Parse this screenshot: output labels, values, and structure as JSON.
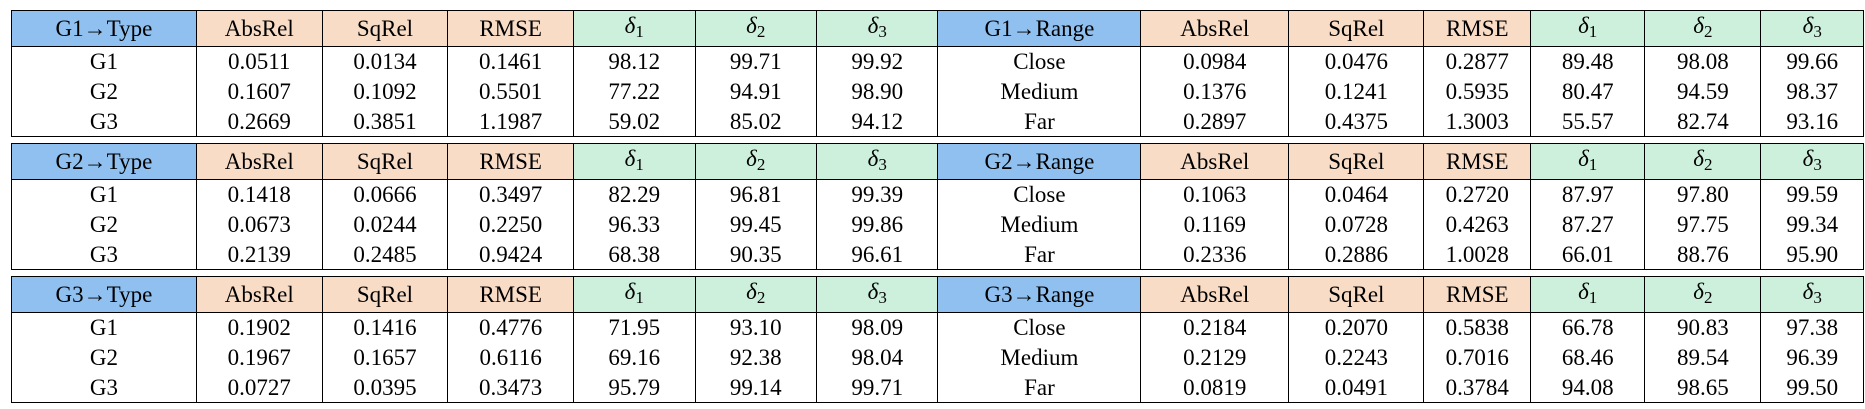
{
  "headers": {
    "abs_rel": "AbsRel",
    "sq_rel": "SqRel",
    "rmse": "RMSE",
    "delta_symbol": "δ",
    "delta1_sub": "1",
    "delta2_sub": "2",
    "delta3_sub": "3"
  },
  "colors": {
    "group_header": "#8fc0ef",
    "error_metric_header": "#f8dcc6",
    "accuracy_metric_header": "#cdf0dc"
  },
  "blocks": [
    {
      "type_header": "G1→Type",
      "range_header": "G1→Range",
      "rows": [
        {
          "type": "G1",
          "type_vals": [
            "0.0511",
            "0.0134",
            "0.1461",
            "98.12",
            "99.71",
            "99.92"
          ],
          "range": "Close",
          "range_vals": [
            "0.0984",
            "0.0476",
            "0.2877",
            "89.48",
            "98.08",
            "99.66"
          ]
        },
        {
          "type": "G2",
          "type_vals": [
            "0.1607",
            "0.1092",
            "0.5501",
            "77.22",
            "94.91",
            "98.90"
          ],
          "range": "Medium",
          "range_vals": [
            "0.1376",
            "0.1241",
            "0.5935",
            "80.47",
            "94.59",
            "98.37"
          ]
        },
        {
          "type": "G3",
          "type_vals": [
            "0.2669",
            "0.3851",
            "1.1987",
            "59.02",
            "85.02",
            "94.12"
          ],
          "range": "Far",
          "range_vals": [
            "0.2897",
            "0.4375",
            "1.3003",
            "55.57",
            "82.74",
            "93.16"
          ]
        }
      ]
    },
    {
      "type_header": "G2→Type",
      "range_header": "G2→Range",
      "rows": [
        {
          "type": "G1",
          "type_vals": [
            "0.1418",
            "0.0666",
            "0.3497",
            "82.29",
            "96.81",
            "99.39"
          ],
          "range": "Close",
          "range_vals": [
            "0.1063",
            "0.0464",
            "0.2720",
            "87.97",
            "97.80",
            "99.59"
          ]
        },
        {
          "type": "G2",
          "type_vals": [
            "0.0673",
            "0.0244",
            "0.2250",
            "96.33",
            "99.45",
            "99.86"
          ],
          "range": "Medium",
          "range_vals": [
            "0.1169",
            "0.0728",
            "0.4263",
            "87.27",
            "97.75",
            "99.34"
          ]
        },
        {
          "type": "G3",
          "type_vals": [
            "0.2139",
            "0.2485",
            "0.9424",
            "68.38",
            "90.35",
            "96.61"
          ],
          "range": "Far",
          "range_vals": [
            "0.2336",
            "0.2886",
            "1.0028",
            "66.01",
            "88.76",
            "95.90"
          ]
        }
      ]
    },
    {
      "type_header": "G3→Type",
      "range_header": "G3→Range",
      "rows": [
        {
          "type": "G1",
          "type_vals": [
            "0.1902",
            "0.1416",
            "0.4776",
            "71.95",
            "93.10",
            "98.09"
          ],
          "range": "Close",
          "range_vals": [
            "0.2184",
            "0.2070",
            "0.5838",
            "66.78",
            "90.83",
            "97.38"
          ]
        },
        {
          "type": "G2",
          "type_vals": [
            "0.1967",
            "0.1657",
            "0.6116",
            "69.16",
            "92.38",
            "98.04"
          ],
          "range": "Medium",
          "range_vals": [
            "0.2129",
            "0.2243",
            "0.7016",
            "68.46",
            "89.54",
            "96.39"
          ]
        },
        {
          "type": "G3",
          "type_vals": [
            "0.0727",
            "0.0395",
            "0.3473",
            "95.79",
            "99.14",
            "99.71"
          ],
          "range": "Far",
          "range_vals": [
            "0.0819",
            "0.0491",
            "0.3784",
            "94.08",
            "98.65",
            "99.50"
          ]
        }
      ]
    }
  ]
}
